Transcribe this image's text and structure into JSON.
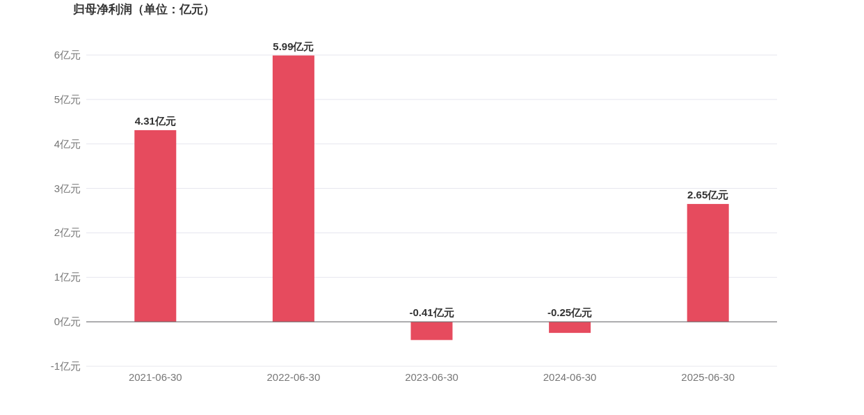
{
  "chart_data": {
    "type": "bar",
    "title": "归母净利润（单位：亿元）",
    "categories": [
      "2021-06-30",
      "2022-06-30",
      "2023-06-30",
      "2024-06-30",
      "2025-06-30"
    ],
    "values": [
      4.31,
      5.99,
      -0.41,
      -0.25,
      2.65
    ],
    "value_labels": [
      "4.31亿元",
      "5.99亿元",
      "-0.41亿元",
      "-0.25亿元",
      "2.65亿元"
    ],
    "color": "#e64b5e",
    "ylim": [
      -1,
      6
    ],
    "yticks": [
      {
        "value": -1,
        "label": "-1亿元"
      },
      {
        "value": 0,
        "label": "0亿元"
      },
      {
        "value": 1,
        "label": "1亿元"
      },
      {
        "value": 2,
        "label": "2亿元"
      },
      {
        "value": 3,
        "label": "3亿元"
      },
      {
        "value": 4,
        "label": "4亿元"
      },
      {
        "value": 5,
        "label": "5亿元"
      },
      {
        "value": 6,
        "label": "6亿元"
      }
    ],
    "grid": "y"
  }
}
